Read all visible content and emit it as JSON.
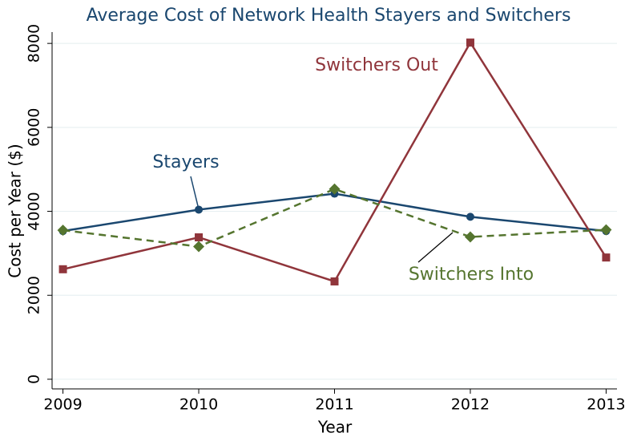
{
  "chart_data": {
    "type": "line",
    "title": "Average Cost of Network Health Stayers and Switchers",
    "x_label": "Year",
    "y_label": "Cost per Year ($)",
    "x": [
      2009,
      2010,
      2011,
      2012,
      2013
    ],
    "series": [
      {
        "name": "Stayers",
        "color": "#1a476f",
        "marker": "circle",
        "dashed": false,
        "values": [
          3530,
          4040,
          4420,
          3870,
          3530
        ]
      },
      {
        "name": "Switchers Out",
        "color": "#90353b",
        "marker": "square",
        "dashed": false,
        "values": [
          2620,
          3380,
          2330,
          8020,
          2900
        ]
      },
      {
        "name": "Switchers Into",
        "color": "#55752f",
        "marker": "diamond",
        "dashed": true,
        "values": [
          3550,
          3160,
          4530,
          3390,
          3560
        ]
      }
    ],
    "xlim": [
      2008.92,
      2013.08
    ],
    "xticks": [
      2009,
      2010,
      2011,
      2012,
      2013
    ],
    "ylim": [
      -230,
      8270
    ],
    "yticks": [
      0,
      2000,
      4000,
      6000,
      8000
    ],
    "grid": true
  }
}
